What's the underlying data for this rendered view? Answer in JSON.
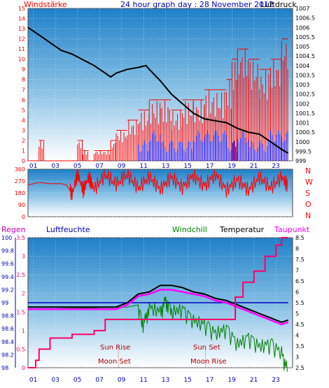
{
  "title": "24 hour graph day : 28 November 2012",
  "colors": {
    "windspeed": "#ff0000",
    "gust": "#0000ff",
    "pressure": "#000000",
    "humidity": "#0000c0",
    "windchill": "#008000",
    "temperature": "#000000",
    "dewpoint": "#ff00ff",
    "rain": "#ff0066",
    "axis_left": "#0000c0",
    "axis_right": "#000000",
    "label_red": "#ff0000",
    "sun_label": "#b00000"
  },
  "chart_data": [
    {
      "type": "line",
      "name": "wind-pressure",
      "left_label": "Windstärke",
      "right_label": "Luftdruck",
      "x_ticks": [
        "01",
        "03",
        "05",
        "07",
        "09",
        "11",
        "13",
        "15",
        "17",
        "19",
        "21",
        "23"
      ],
      "y_left": {
        "min": 0,
        "max": 15,
        "ticks": [
          "0",
          "1",
          "2",
          "3",
          "4",
          "5",
          "6",
          "7",
          "8",
          "9",
          "10",
          "11",
          "12",
          "13",
          "14",
          "15"
        ]
      },
      "y_right": {
        "min": 999,
        "max": 1007,
        "ticks": [
          "999",
          "999.5",
          "1000",
          "1000.5",
          "1001",
          "1001.5",
          "1002",
          "1002.5",
          "1003",
          "1003.5",
          "1004",
          "1004.5",
          "1005",
          "1005.5",
          "1006",
          "1006.5",
          "1007"
        ]
      },
      "pressure_points": [
        [
          0,
          1006.0
        ],
        [
          1,
          1005.6
        ],
        [
          2,
          1005.2
        ],
        [
          3,
          1004.8
        ],
        [
          4,
          1004.6
        ],
        [
          5,
          1004.3
        ],
        [
          6,
          1004.0
        ],
        [
          7,
          1003.6
        ],
        [
          7.5,
          1003.4
        ],
        [
          8,
          1003.6
        ],
        [
          9,
          1003.8
        ],
        [
          10,
          1003.9
        ],
        [
          10.7,
          1004.0
        ],
        [
          11,
          1003.8
        ],
        [
          12,
          1003.2
        ],
        [
          13,
          1002.5
        ],
        [
          14,
          1002.0
        ],
        [
          15,
          1001.5
        ],
        [
          16,
          1001.2
        ],
        [
          17,
          1001.1
        ],
        [
          18,
          1001.0
        ],
        [
          19,
          1000.7
        ],
        [
          20,
          1000.5
        ],
        [
          21,
          1000.4
        ],
        [
          22,
          1000.0
        ],
        [
          23,
          999.6
        ],
        [
          23.6,
          999.4
        ]
      ],
      "wind_segments": [
        [
          0,
          1,
          0
        ],
        [
          1,
          1.5,
          2
        ],
        [
          1.5,
          4.5,
          0
        ],
        [
          4.5,
          5,
          2
        ],
        [
          5,
          5.5,
          1
        ],
        [
          5.5,
          6,
          0
        ],
        [
          6,
          7.5,
          1
        ],
        [
          7.5,
          8,
          2
        ],
        [
          8,
          9,
          3
        ],
        [
          9,
          10,
          4
        ],
        [
          10,
          11,
          5
        ],
        [
          11,
          12,
          6
        ],
        [
          12,
          13,
          6
        ],
        [
          13,
          14,
          5
        ],
        [
          14,
          15,
          6
        ],
        [
          15,
          16,
          6
        ],
        [
          16,
          17,
          7
        ],
        [
          17,
          18,
          7
        ],
        [
          18,
          18.5,
          8
        ],
        [
          18.5,
          19,
          10
        ],
        [
          19,
          20,
          11
        ],
        [
          20,
          21,
          10
        ],
        [
          21,
          22,
          9
        ],
        [
          22,
          23,
          10
        ],
        [
          23,
          23.6,
          12
        ]
      ],
      "gust_segments": [
        [
          10,
          11,
          2
        ],
        [
          11,
          12,
          3
        ],
        [
          12,
          13,
          2
        ],
        [
          13,
          14,
          2
        ],
        [
          14,
          15,
          2
        ],
        [
          15,
          16,
          3
        ],
        [
          16,
          17,
          3
        ],
        [
          17,
          18,
          3
        ],
        [
          18,
          19,
          2
        ],
        [
          19,
          20,
          3
        ],
        [
          20,
          21,
          2
        ],
        [
          21,
          22,
          2
        ],
        [
          22,
          23,
          3
        ],
        [
          23,
          23.6,
          3
        ]
      ]
    },
    {
      "type": "line",
      "name": "wind-direction",
      "y_left": {
        "min": 0,
        "max": 360,
        "ticks": [
          "0",
          "90",
          "180",
          "270",
          "360"
        ]
      },
      "right_letters": [
        "N",
        "W",
        "S",
        "O",
        "N"
      ],
      "dir_points": [
        [
          0,
          240
        ],
        [
          1,
          260
        ],
        [
          2,
          250
        ],
        [
          3,
          250
        ],
        [
          3.5,
          240
        ],
        [
          4,
          170
        ],
        [
          4.5,
          330
        ],
        [
          5,
          200
        ],
        [
          5.5,
          300
        ],
        [
          6,
          210
        ],
        [
          7,
          320
        ],
        [
          8,
          250
        ],
        [
          9,
          320
        ],
        [
          10,
          220
        ],
        [
          11,
          300
        ],
        [
          12,
          210
        ],
        [
          13,
          300
        ],
        [
          14,
          220
        ],
        [
          15,
          310
        ],
        [
          16,
          230
        ],
        [
          17,
          320
        ],
        [
          18,
          200
        ],
        [
          19,
          280
        ],
        [
          20,
          200
        ],
        [
          21,
          300
        ],
        [
          22,
          220
        ],
        [
          23,
          300
        ],
        [
          23.6,
          230
        ]
      ]
    },
    {
      "type": "line",
      "name": "temp-humidity-rain",
      "labels": {
        "rain": "Regen",
        "humidity": "Luftfeuchte",
        "windchill": "Windchill",
        "temperature": "Temperatur",
        "dewpoint": "Taupunkt"
      },
      "y_rain": {
        "min": 0,
        "max": 3.5,
        "ticks": [
          "0",
          "0.5",
          "1",
          "1.5",
          "2",
          "2.5",
          "3",
          "3.5"
        ]
      },
      "y_humidity": {
        "min": 98,
        "max": 100,
        "ticks": [
          "98",
          "98.2",
          "98.4",
          "98.6",
          "98.8",
          "99",
          "99.2",
          "99.4",
          "99.6",
          "99.8",
          "100"
        ]
      },
      "y_temp": {
        "min": 2.5,
        "max": 8.5,
        "ticks": [
          "2.5",
          "3",
          "3.5",
          "4",
          "4.5",
          "5",
          "5.5",
          "6",
          "6.5",
          "7",
          "7.5",
          "8",
          "8.5"
        ]
      },
      "temperature_points": [
        [
          0,
          5.3
        ],
        [
          2,
          5.3
        ],
        [
          4,
          5.3
        ],
        [
          6,
          5.3
        ],
        [
          8,
          5.3
        ],
        [
          9,
          5.5
        ],
        [
          10,
          5.9
        ],
        [
          11,
          6.0
        ],
        [
          12,
          6.3
        ],
        [
          13,
          6.3
        ],
        [
          14,
          6.2
        ],
        [
          15,
          6.0
        ],
        [
          16,
          5.9
        ],
        [
          17,
          5.7
        ],
        [
          18,
          5.6
        ],
        [
          19,
          5.4
        ],
        [
          20,
          5.2
        ],
        [
          21,
          5.0
        ],
        [
          22,
          4.8
        ],
        [
          23,
          4.6
        ],
        [
          23.6,
          4.7
        ]
      ],
      "dewpoint_points": [
        [
          0,
          5.2
        ],
        [
          2,
          5.2
        ],
        [
          4,
          5.2
        ],
        [
          6,
          5.2
        ],
        [
          8,
          5.2
        ],
        [
          9,
          5.4
        ],
        [
          10,
          5.8
        ],
        [
          11,
          5.9
        ],
        [
          12,
          6.1
        ],
        [
          13,
          6.1
        ],
        [
          14,
          6.0
        ],
        [
          15,
          5.9
        ],
        [
          16,
          5.8
        ],
        [
          17,
          5.6
        ],
        [
          18,
          5.5
        ],
        [
          19,
          5.3
        ],
        [
          20,
          5.1
        ],
        [
          21,
          4.9
        ],
        [
          22,
          4.7
        ],
        [
          23,
          4.5
        ],
        [
          23.6,
          4.6
        ]
      ],
      "windchill_points": [
        [
          0,
          5.2
        ],
        [
          9,
          5.3
        ],
        [
          10,
          5.4
        ],
        [
          10.5,
          4.8
        ],
        [
          11,
          5.6
        ],
        [
          12,
          5.4
        ],
        [
          12.5,
          5.9
        ],
        [
          13,
          5.4
        ],
        [
          14,
          5.5
        ],
        [
          15,
          5.0
        ],
        [
          16,
          4.8
        ],
        [
          17,
          4.4
        ],
        [
          18,
          4.6
        ],
        [
          19,
          3.9
        ],
        [
          20,
          4.2
        ],
        [
          21,
          3.8
        ],
        [
          22,
          3.9
        ],
        [
          23,
          3.5
        ],
        [
          23.6,
          2.6
        ]
      ],
      "humidity_points": [
        [
          0,
          99.0
        ],
        [
          8,
          99.0
        ],
        [
          9,
          99.0
        ],
        [
          12,
          99.0
        ],
        [
          16,
          99.0
        ],
        [
          20,
          99.0
        ],
        [
          23.6,
          99.0
        ]
      ],
      "rain_points": [
        [
          0,
          0
        ],
        [
          0.7,
          0
        ],
        [
          0.7,
          0.2
        ],
        [
          1,
          0.2
        ],
        [
          1,
          0.5
        ],
        [
          2,
          0.5
        ],
        [
          2,
          0.8
        ],
        [
          4,
          0.8
        ],
        [
          4,
          0.9
        ],
        [
          6,
          0.9
        ],
        [
          6,
          1.0
        ],
        [
          7,
          1.0
        ],
        [
          7,
          1.3
        ],
        [
          18.8,
          1.3
        ],
        [
          18.8,
          1.9
        ],
        [
          19.5,
          1.9
        ],
        [
          19.5,
          2.3
        ],
        [
          20.5,
          2.3
        ],
        [
          20.5,
          2.6
        ],
        [
          21.5,
          2.6
        ],
        [
          21.5,
          3.0
        ],
        [
          22.5,
          3.0
        ],
        [
          22.5,
          3.3
        ],
        [
          23,
          3.3
        ],
        [
          23,
          3.5
        ],
        [
          23.6,
          3.5
        ]
      ],
      "sun": {
        "rise": "Sun Rise",
        "set": "Sun Set",
        "moon_set": "Moon Set",
        "moon_rise": "Moon Rise"
      }
    }
  ]
}
